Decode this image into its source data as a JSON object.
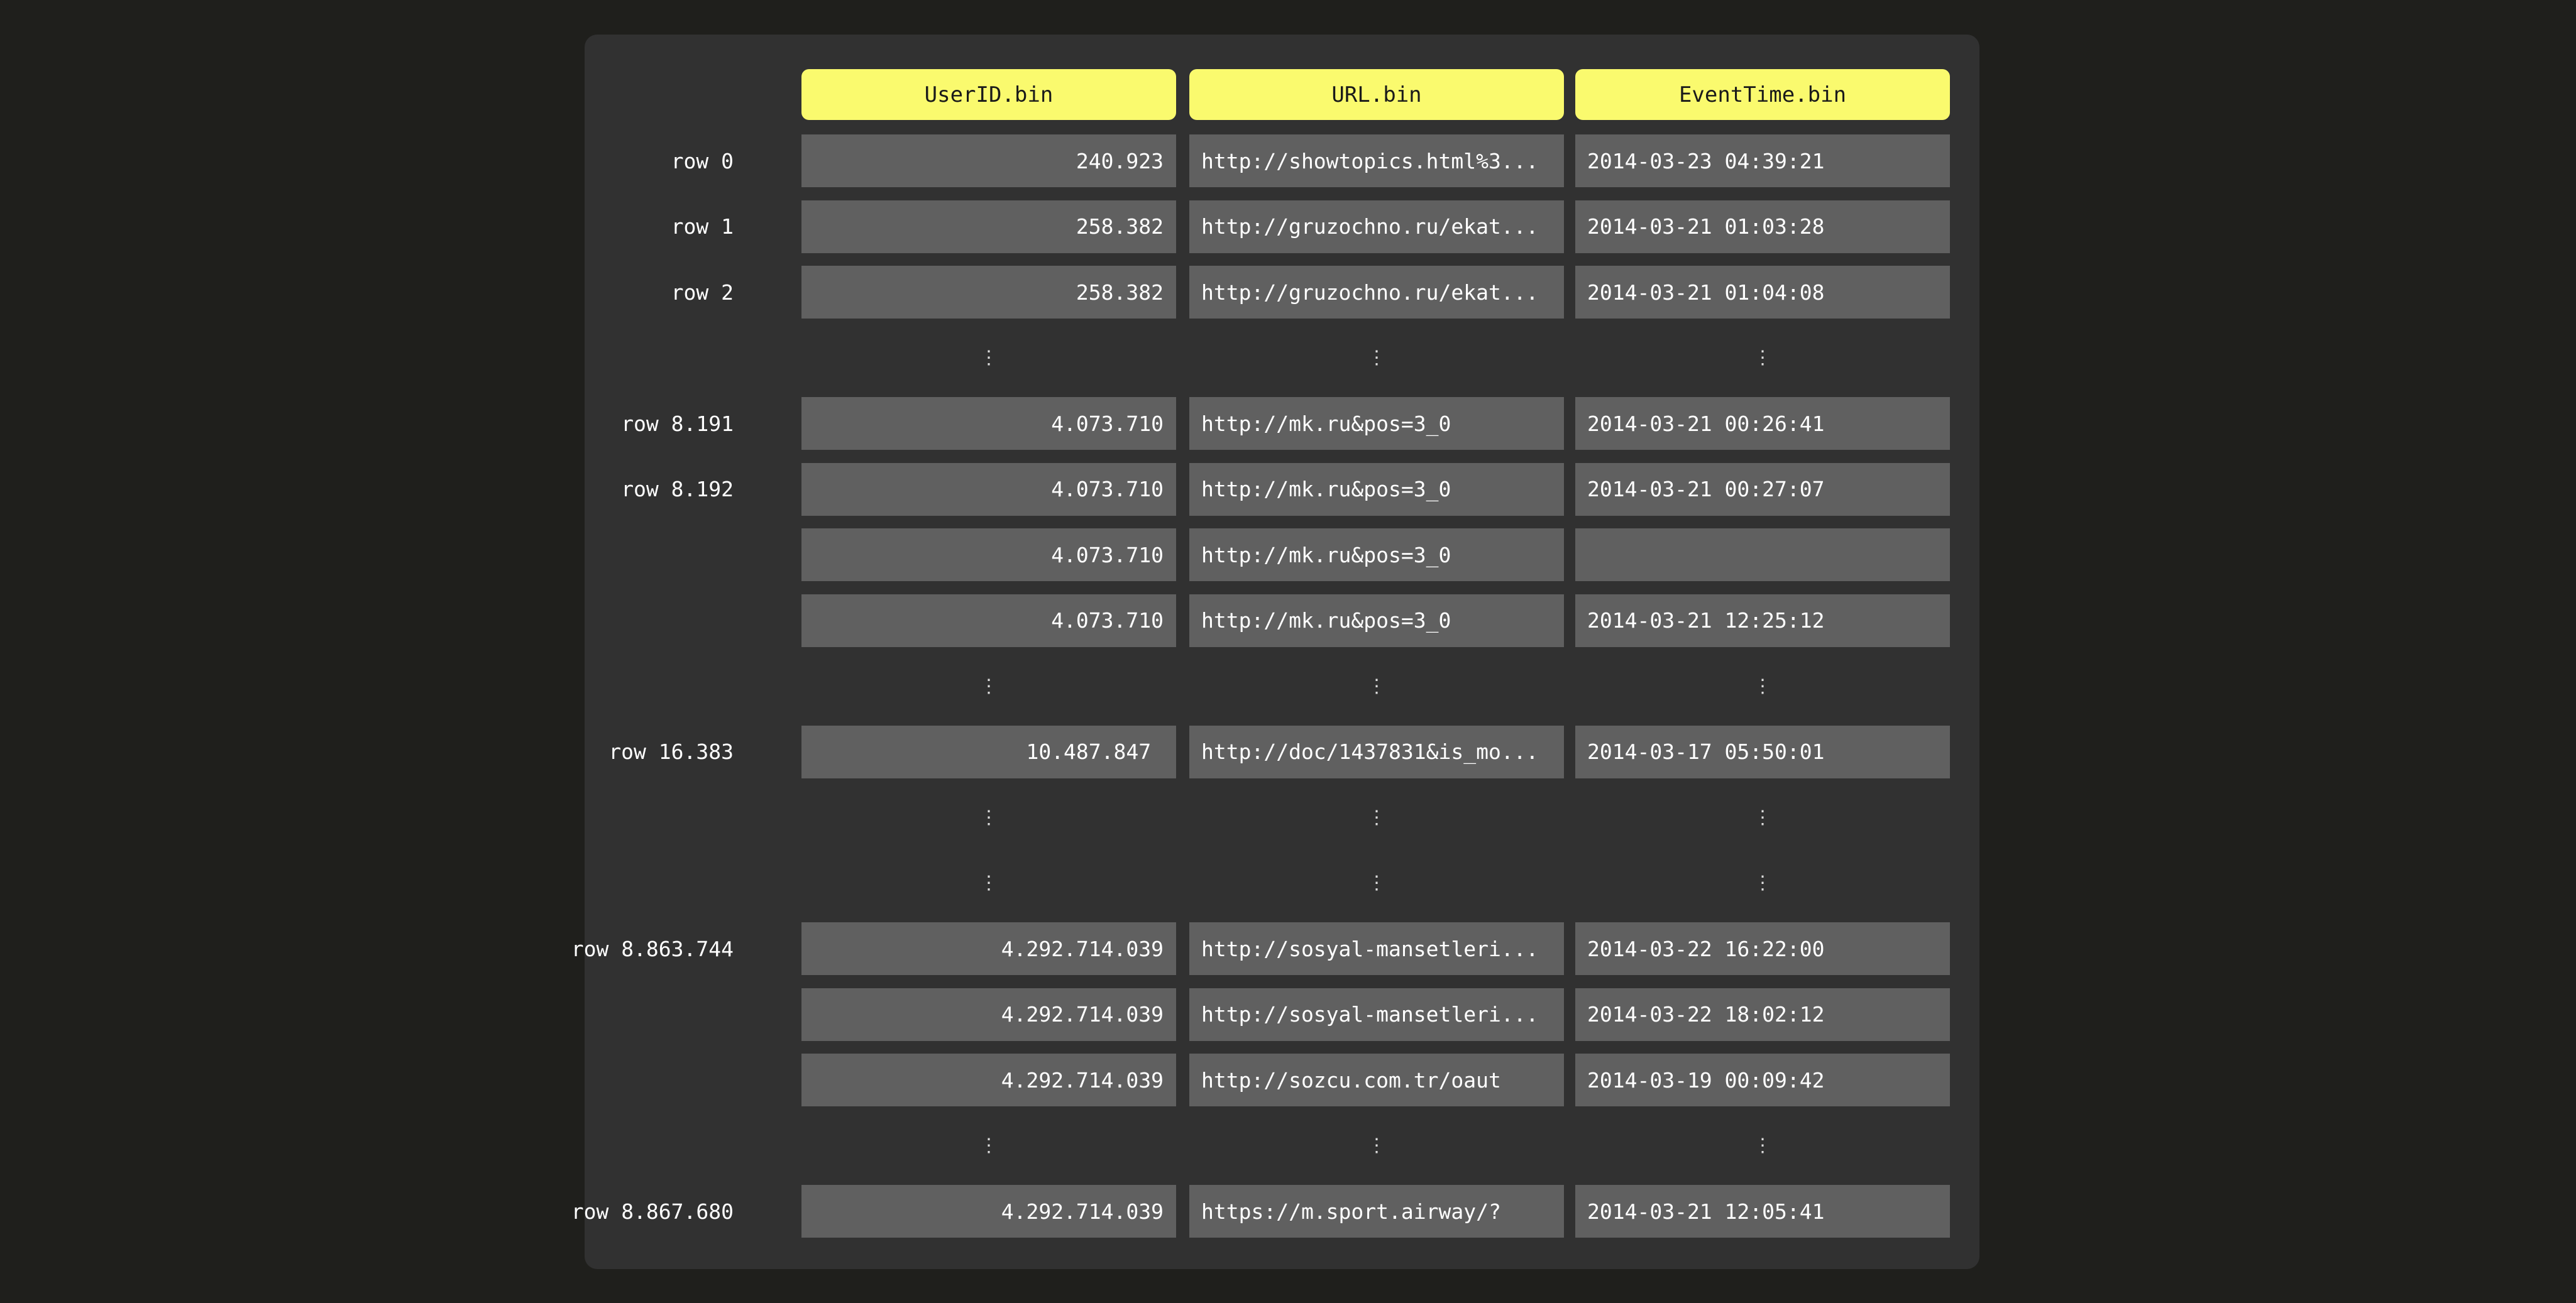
{
  "columns": [
    "UserID.bin",
    "URL.bin",
    "EventTime.bin"
  ],
  "colors": {
    "background": "#1f1f1c",
    "panel": "#313131",
    "cell": "#606060",
    "header": "#fafa6e"
  },
  "ellipsis_glyph": "⋮",
  "rows": [
    {
      "label": "row 0",
      "values": [
        "240.923",
        "http://showtopics.html%3...",
        "2014-03-23 04:39:21"
      ]
    },
    {
      "label": "row 1",
      "values": [
        "258.382",
        "http://gruzochno.ru/ekat...",
        "2014-03-21 01:03:28"
      ]
    },
    {
      "label": "row 2",
      "values": [
        "258.382",
        "http://gruzochno.ru/ekat...",
        "2014-03-21 01:04:08"
      ]
    },
    {
      "ellipsis": true
    },
    {
      "label": "row 8.191",
      "values": [
        "4.073.710",
        "http://mk.ru&pos=3_0",
        "2014-03-21 00:26:41"
      ]
    },
    {
      "label": "row 8.192",
      "values": [
        "4.073.710",
        "http://mk.ru&pos=3_0",
        "2014-03-21 00:27:07"
      ]
    },
    {
      "label": "",
      "values": [
        "4.073.710",
        "http://mk.ru&pos=3_0",
        ""
      ]
    },
    {
      "label": "",
      "values": [
        "4.073.710",
        "http://mk.ru&pos=3_0",
        "2014-03-21 12:25:12"
      ]
    },
    {
      "ellipsis": true
    },
    {
      "label": "row 16.383",
      "values": [
        "10.487.847 ",
        "http://doc/1437831&is_mo...",
        "2014-03-17 05:50:01"
      ]
    },
    {
      "ellipsis": true
    },
    {
      "ellipsis": true
    },
    {
      "label": "row 8.863.744",
      "values": [
        "4.292.714.039",
        "http://sosyal-mansetleri...",
        "2014-03-22 16:22:00"
      ]
    },
    {
      "label": "",
      "values": [
        "4.292.714.039",
        "http://sosyal-mansetleri...",
        "2014-03-22 18:02:12"
      ]
    },
    {
      "label": "",
      "values": [
        "4.292.714.039",
        "http://sozcu.com.tr/oaut",
        "2014-03-19 00:09:42"
      ]
    },
    {
      "ellipsis": true
    },
    {
      "label": "row 8.867.680",
      "values": [
        "4.292.714.039",
        "https://m.sport.airway/?",
        "2014-03-21 12:05:41"
      ]
    }
  ]
}
